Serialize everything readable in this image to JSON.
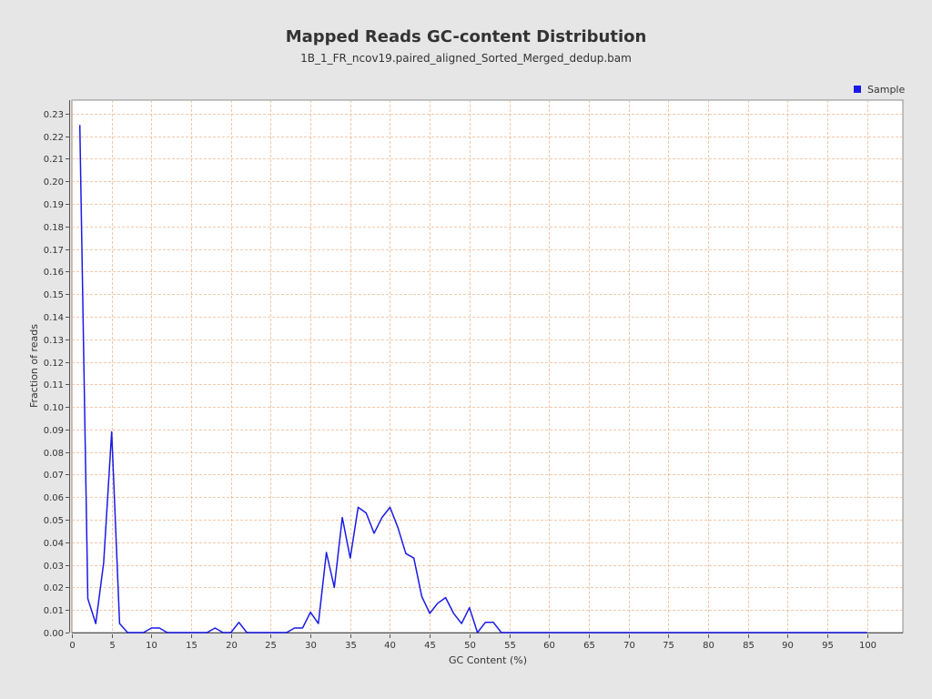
{
  "chart_data": {
    "type": "line",
    "title": "Mapped Reads GC-content Distribution",
    "subtitle": "1B_1_FR_ncov19.paired_aligned_Sorted_Merged_dedup.bam",
    "xlabel": "GC Content (%)",
    "ylabel": "Fraction of reads",
    "xlim": [
      0,
      104.5
    ],
    "ylim": [
      0,
      0.236
    ],
    "x_ticks": [
      0,
      5,
      10,
      15,
      20,
      25,
      30,
      35,
      40,
      45,
      50,
      55,
      60,
      65,
      70,
      75,
      80,
      85,
      90,
      95,
      100
    ],
    "y_ticks": [
      "0.00",
      "0.01",
      "0.02",
      "0.03",
      "0.04",
      "0.05",
      "0.06",
      "0.07",
      "0.08",
      "0.09",
      "0.10",
      "0.11",
      "0.12",
      "0.13",
      "0.14",
      "0.15",
      "0.16",
      "0.17",
      "0.18",
      "0.19",
      "0.20",
      "0.21",
      "0.22",
      "0.23"
    ],
    "grid": true,
    "legend_position": "top-right",
    "colors": {
      "series": "#1a1ae6",
      "grid": "#f0b890",
      "plot_bg": "#ffffff",
      "page_bg": "#e6e6e6"
    },
    "series": [
      {
        "name": "Sample",
        "x": [
          1,
          2,
          3,
          4,
          5,
          6,
          7,
          8,
          9,
          10,
          11,
          12,
          13,
          14,
          15,
          16,
          17,
          18,
          19,
          20,
          21,
          22,
          23,
          24,
          25,
          26,
          27,
          28,
          29,
          30,
          31,
          32,
          33,
          34,
          35,
          36,
          37,
          38,
          39,
          40,
          41,
          42,
          43,
          44,
          45,
          46,
          47,
          48,
          49,
          50,
          51,
          52,
          53,
          54,
          55,
          60,
          65,
          70,
          75,
          80,
          85,
          90,
          95,
          100
        ],
        "y": [
          0.225,
          0.015,
          0.004,
          0.031,
          0.089,
          0.004,
          0,
          0,
          0,
          0.002,
          0.002,
          0,
          0,
          0,
          0,
          0,
          0,
          0.002,
          0,
          0,
          0.0045,
          0,
          0,
          0,
          0,
          0,
          0,
          0.002,
          0.002,
          0.009,
          0.004,
          0.0355,
          0.02,
          0.051,
          0.033,
          0.0555,
          0.053,
          0.044,
          0.051,
          0.0555,
          0.0465,
          0.035,
          0.033,
          0.016,
          0.0085,
          0.013,
          0.0155,
          0.0085,
          0.004,
          0.011,
          0,
          0.0045,
          0.0045,
          0,
          0,
          0,
          0,
          0,
          0,
          0,
          0,
          0,
          0,
          0
        ]
      }
    ]
  }
}
